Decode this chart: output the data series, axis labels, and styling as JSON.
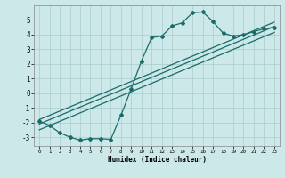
{
  "title": "",
  "xlabel": "Humidex (Indice chaleur)",
  "background_color": "#cce8e8",
  "grid_color": "#aacccc",
  "line_color": "#1a6b6b",
  "marker": "D",
  "markersize": 2.0,
  "linewidth": 0.9,
  "xlim": [
    -0.5,
    23.5
  ],
  "ylim": [
    -3.6,
    6.0
  ],
  "yticks": [
    -3,
    -2,
    -1,
    0,
    1,
    2,
    3,
    4,
    5
  ],
  "xticks": [
    0,
    1,
    2,
    3,
    4,
    5,
    6,
    7,
    8,
    9,
    10,
    11,
    12,
    13,
    14,
    15,
    16,
    17,
    18,
    19,
    20,
    21,
    22,
    23
  ],
  "series_main": {
    "x": [
      0,
      1,
      2,
      3,
      4,
      5,
      6,
      7,
      8,
      9,
      10,
      11,
      12,
      13,
      14,
      15,
      16,
      17,
      18,
      19,
      20,
      21,
      22,
      23
    ],
    "y": [
      -1.9,
      -2.2,
      -2.7,
      -3.0,
      -3.2,
      -3.1,
      -3.1,
      -3.15,
      -1.5,
      0.3,
      2.2,
      3.8,
      3.9,
      4.6,
      4.8,
      5.5,
      5.55,
      4.9,
      4.1,
      3.9,
      4.0,
      4.2,
      4.4,
      4.5
    ]
  },
  "series_lines": [
    {
      "x": [
        0,
        23
      ],
      "y": [
        -2.1,
        4.55
      ]
    },
    {
      "x": [
        0,
        23
      ],
      "y": [
        -2.5,
        4.15
      ]
    },
    {
      "x": [
        0,
        23
      ],
      "y": [
        -1.8,
        4.85
      ]
    }
  ]
}
